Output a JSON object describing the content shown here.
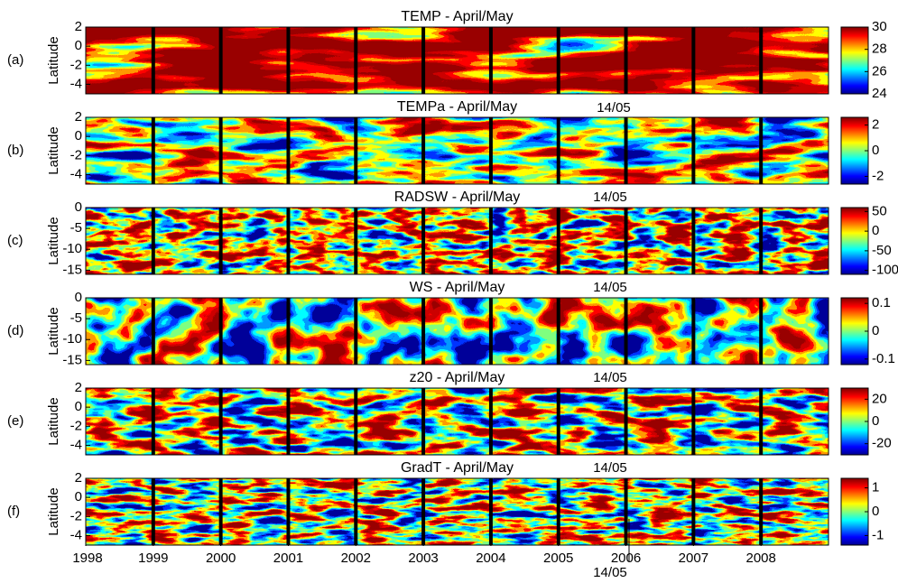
{
  "figure": {
    "y_axis_label": "Latitude",
    "x_labels": [
      "1998",
      "1999",
      "2000",
      "2001",
      "2002",
      "2003",
      "2004",
      "2005",
      "2006",
      "2007",
      "2008"
    ],
    "annotations": [
      "14/05",
      "14/05",
      "14/05",
      "14/05",
      "14/05",
      "14/05"
    ],
    "panels": [
      {
        "label": "(a)",
        "title": "TEMP - April/May",
        "ylim": [
          -5,
          2
        ],
        "yticks": [
          2,
          0,
          -2,
          -4
        ],
        "colorbar": {
          "lim": [
            24,
            30
          ],
          "ticks": [
            30,
            28,
            26,
            24
          ]
        }
      },
      {
        "label": "(b)",
        "title": "TEMPa - April/May",
        "ylim": [
          -5,
          2
        ],
        "yticks": [
          2,
          0,
          -2,
          -4
        ],
        "colorbar": {
          "lim": [
            -2.6,
            2.6
          ],
          "ticks": [
            2,
            0,
            -2
          ]
        }
      },
      {
        "label": "(c)",
        "title": "RADSW - April/May",
        "ylim": [
          -16,
          0
        ],
        "yticks": [
          0,
          -5,
          -10,
          -15
        ],
        "colorbar": {
          "lim": [
            -110,
            60
          ],
          "ticks": [
            50,
            0,
            -50,
            -100
          ]
        }
      },
      {
        "label": "(d)",
        "title": "WS - April/May",
        "ylim": [
          -16,
          0
        ],
        "yticks": [
          0,
          -5,
          -10,
          -15
        ],
        "colorbar": {
          "lim": [
            -0.12,
            0.12
          ],
          "ticks": [
            0.1,
            0,
            -0.1
          ]
        }
      },
      {
        "label": "(e)",
        "title": "z20 - April/May",
        "ylim": [
          -5,
          2
        ],
        "yticks": [
          2,
          0,
          -2,
          -4
        ],
        "colorbar": {
          "lim": [
            -30,
            30
          ],
          "ticks": [
            20,
            0,
            -20
          ]
        }
      },
      {
        "label": "(f)",
        "title": "GradT - April/May",
        "ylim": [
          -5,
          2
        ],
        "yticks": [
          2,
          0,
          -2,
          -4
        ],
        "colorbar": {
          "lim": [
            -1.4,
            1.4
          ],
          "ticks": [
            1,
            0,
            -1
          ]
        }
      }
    ]
  }
}
